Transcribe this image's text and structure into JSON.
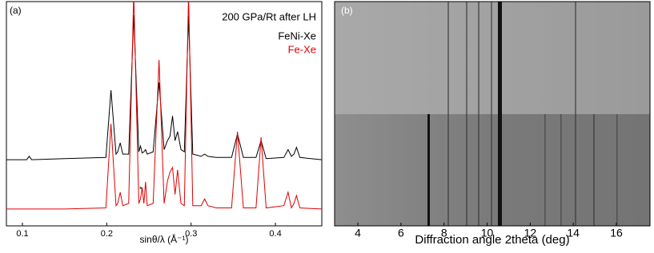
{
  "chart_data": [
    {
      "type": "line",
      "label": "(a)",
      "annotation": "200 GPa/Rt after LH",
      "marker_note": "*",
      "xlabel": "sinθ/λ (Å⁻¹)",
      "xlim": [
        0.081,
        0.455
      ],
      "xticks": [
        0.1,
        0.2,
        0.3,
        0.4
      ],
      "ylim": [
        0,
        100
      ],
      "x": [
        0.081,
        0.105,
        0.108,
        0.111,
        0.15,
        0.199,
        0.205,
        0.211,
        0.213,
        0.216,
        0.219,
        0.226,
        0.232,
        0.238,
        0.24,
        0.242,
        0.244,
        0.246,
        0.248,
        0.255,
        0.262,
        0.268,
        0.272,
        0.275,
        0.278,
        0.281,
        0.284,
        0.288,
        0.292,
        0.297,
        0.302,
        0.312,
        0.316,
        0.32,
        0.33,
        0.348,
        0.355,
        0.362,
        0.377,
        0.383,
        0.389,
        0.41,
        0.415,
        0.419,
        0.422,
        0.425,
        0.429,
        0.455
      ],
      "series": [
        {
          "name": "FeNi-Xe",
          "color": "#000000",
          "values": [
            29.5,
            29.5,
            31,
            29.5,
            30,
            30.5,
            60.5,
            32,
            33,
            37,
            32,
            32,
            94,
            33,
            35.6,
            32.5,
            33,
            34,
            32,
            33,
            64,
            34,
            38,
            40,
            49,
            38,
            42,
            34,
            33,
            93.6,
            32,
            31,
            32,
            31,
            30.5,
            30.5,
            41,
            30.5,
            30.5,
            38,
            30,
            30.5,
            34,
            31,
            32,
            35,
            30.5,
            29.5
          ]
        },
        {
          "name": "Fe-Xe",
          "color": "#e00000",
          "values": [
            7.5,
            7.5,
            7.5,
            7.5,
            7.5,
            8,
            45.5,
            9,
            10,
            15,
            9,
            10,
            104,
            10,
            12,
            17,
            10,
            19.6,
            9,
            10,
            74,
            10,
            20,
            24,
            26,
            14,
            25,
            10,
            9,
            104,
            9,
            9,
            12,
            9,
            8,
            8,
            42,
            8,
            8,
            39.5,
            8,
            9,
            15,
            8,
            10,
            13.5,
            8,
            7.5
          ]
        }
      ]
    },
    {
      "type": "image",
      "label": "(b)",
      "xlabel": "Diffraction angle 2theta (deg)",
      "xlim": [
        2.92,
        17.56
      ],
      "xticks": [
        4,
        6,
        8,
        10,
        12,
        14,
        16
      ]
    }
  ]
}
